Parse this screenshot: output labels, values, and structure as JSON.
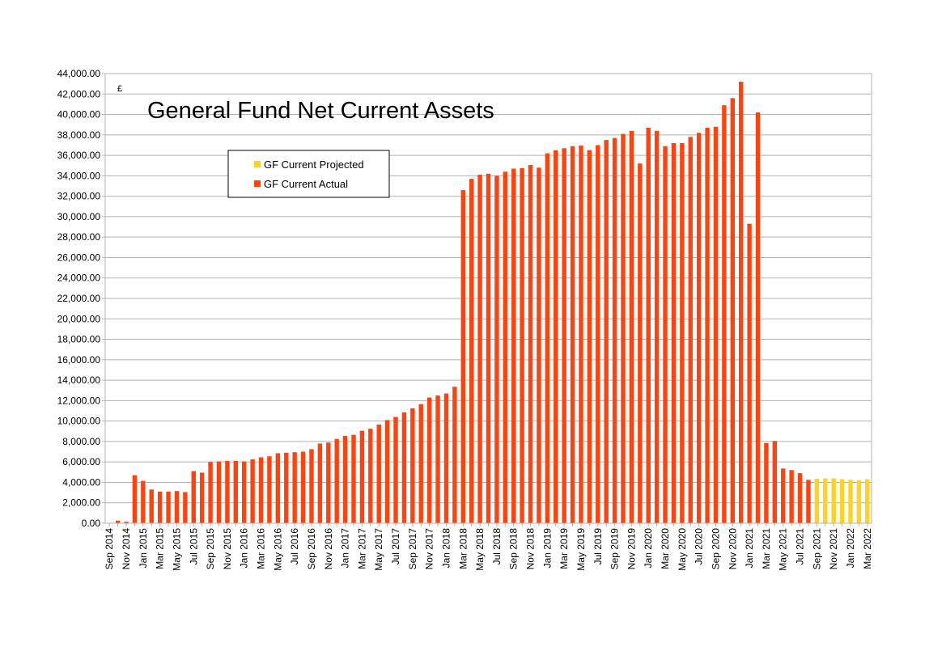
{
  "chart_data": {
    "type": "bar",
    "title": "General Fund Net Current Assets",
    "ylabel": "£",
    "ylim": [
      0,
      44000
    ],
    "ytick_step": 2000,
    "grid": true,
    "legend_placement": "top-left",
    "colors": {
      "actual": "#ff420e",
      "projected": "#ffd320",
      "grid": "#b3b3b3",
      "frame": "#b3b3b3"
    },
    "categories": [
      "Sep 2014",
      "Oct 2014",
      "Nov 2014",
      "Dec 2014",
      "Jan 2015",
      "Feb 2015",
      "Mar 2015",
      "Apr 2015",
      "May 2015",
      "Jun 2015",
      "Jul 2015",
      "Aug 2015",
      "Sep 2015",
      "Oct 2015",
      "Nov 2015",
      "Dec 2015",
      "Jan 2016",
      "Feb 2016",
      "Mar 2016",
      "Apr 2016",
      "May 2016",
      "Jun 2016",
      "Jul 2016",
      "Aug 2016",
      "Sep 2016",
      "Oct 2016",
      "Nov 2016",
      "Dec 2016",
      "Jan 2017",
      "Feb 2017",
      "Mar 2017",
      "Apr 2017",
      "May 2017",
      "Jun 2017",
      "Jul 2017",
      "Aug 2017",
      "Sep 2017",
      "Oct 2017",
      "Nov 2017",
      "Dec 2017",
      "Jan 2018",
      "Feb 2018",
      "Mar 2018",
      "Apr 2018",
      "May 2018",
      "Jun 2018",
      "Jul 2018",
      "Aug 2018",
      "Sep 2018",
      "Oct 2018",
      "Nov 2018",
      "Dec 2018",
      "Jan 2019",
      "Feb 2019",
      "Mar 2019",
      "Apr 2019",
      "May 2019",
      "Jun 2019",
      "Jul 2019",
      "Aug 2019",
      "Sep 2019",
      "Oct 2019",
      "Nov 2019",
      "Dec 2019",
      "Jan 2020",
      "Feb 2020",
      "Mar 2020",
      "Apr 2020",
      "May 2020",
      "Jun 2020",
      "Jul 2020",
      "Aug 2020",
      "Sep 2020",
      "Oct 2020",
      "Nov 2020",
      "Dec 2020",
      "Jan 2021",
      "Feb 2021",
      "Mar 2021",
      "Apr 2021",
      "May 2021",
      "Jun 2021",
      "Jul 2021",
      "Aug 2021",
      "Sep 2021",
      "Oct 2021",
      "Nov 2021",
      "Dec 2021",
      "Jan 2022",
      "Feb 2022",
      "Mar 2022"
    ],
    "series": [
      {
        "name": "GF Current Projected",
        "key": "projected",
        "values": [
          null,
          null,
          null,
          null,
          null,
          null,
          null,
          null,
          null,
          null,
          null,
          null,
          null,
          null,
          null,
          null,
          null,
          null,
          null,
          null,
          null,
          null,
          null,
          null,
          null,
          null,
          null,
          null,
          null,
          null,
          null,
          null,
          null,
          null,
          null,
          null,
          null,
          null,
          null,
          null,
          null,
          null,
          null,
          null,
          null,
          null,
          null,
          null,
          null,
          null,
          null,
          null,
          null,
          null,
          null,
          null,
          null,
          null,
          null,
          null,
          null,
          null,
          null,
          null,
          null,
          null,
          null,
          null,
          null,
          null,
          null,
          null,
          null,
          null,
          null,
          null,
          null,
          null,
          null,
          null,
          null,
          null,
          null,
          null,
          4350,
          4400,
          4400,
          4300,
          4250,
          4200,
          4300
        ]
      },
      {
        "name": "GF Current Actual",
        "key": "actual",
        "values": [
          0,
          250,
          150,
          4700,
          4150,
          3300,
          3100,
          3100,
          3150,
          3050,
          5100,
          4950,
          6000,
          6050,
          6100,
          6100,
          6050,
          6250,
          6450,
          6550,
          6850,
          6900,
          6950,
          7000,
          7250,
          7800,
          7900,
          8250,
          8550,
          8650,
          9050,
          9250,
          9650,
          10100,
          10400,
          10850,
          11250,
          11650,
          12300,
          12500,
          12700,
          13350,
          32600,
          33700,
          34100,
          34200,
          34000,
          34400,
          34700,
          34750,
          35050,
          34800,
          36200,
          36500,
          36700,
          36900,
          36950,
          36500,
          37000,
          37500,
          37700,
          38100,
          38400,
          35200,
          38700,
          38400,
          36900,
          37200,
          37200,
          37800,
          38200,
          38700,
          38800,
          40900,
          41600,
          43200,
          29300,
          40200,
          7850,
          8050,
          5350,
          5200,
          4900,
          4250,
          null,
          null,
          null,
          null,
          null,
          null,
          null
        ]
      }
    ]
  }
}
